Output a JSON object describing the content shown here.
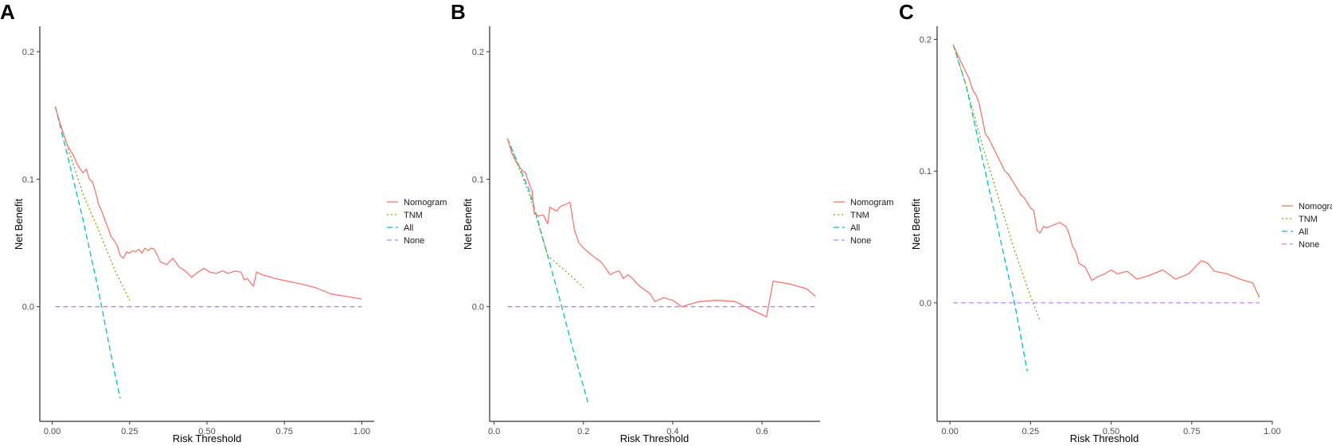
{
  "series_styles": {
    "Nomogram": {
      "color": "#F8766D",
      "dash": ""
    },
    "TNM": {
      "color": "#7CAE00",
      "dash": "2,3"
    },
    "All": {
      "color": "#00BFC4",
      "dash": "7,4"
    },
    "None": {
      "color": "#C77CFF",
      "dash": "6,4"
    }
  },
  "chart_data": [
    {
      "panel": "A",
      "type": "line",
      "xlabel": "Risk Threshold",
      "ylabel": "Net Benefit",
      "xlim": [
        -0.04,
        1.04
      ],
      "ylim": [
        -0.09,
        0.22
      ],
      "xticks": [
        0.0,
        0.25,
        0.5,
        0.75,
        1.0
      ],
      "xtick_labels": [
        "0.00",
        "0.25",
        "0.50",
        "0.75",
        "1.00"
      ],
      "yticks": [
        0.0,
        0.1,
        0.2
      ],
      "ytick_labels": [
        "0.0",
        "0.1",
        "0.2"
      ],
      "legend": [
        "Nomogram",
        "TNM",
        "All",
        "None"
      ],
      "series": [
        {
          "name": "Nomogram",
          "x": [
            0.01,
            0.03,
            0.05,
            0.06,
            0.07,
            0.08,
            0.09,
            0.1,
            0.11,
            0.12,
            0.13,
            0.14,
            0.15,
            0.16,
            0.17,
            0.18,
            0.19,
            0.2,
            0.21,
            0.22,
            0.23,
            0.24,
            0.25,
            0.26,
            0.27,
            0.28,
            0.29,
            0.3,
            0.31,
            0.32,
            0.33,
            0.35,
            0.37,
            0.39,
            0.41,
            0.43,
            0.45,
            0.47,
            0.49,
            0.51,
            0.53,
            0.55,
            0.57,
            0.59,
            0.61,
            0.62,
            0.63,
            0.64,
            0.65,
            0.66,
            0.68,
            0.72,
            0.76,
            0.8,
            0.85,
            0.9,
            0.95,
            1.0
          ],
          "y": [
            0.157,
            0.14,
            0.126,
            0.122,
            0.118,
            0.112,
            0.108,
            0.105,
            0.108,
            0.1,
            0.098,
            0.09,
            0.08,
            0.075,
            0.068,
            0.062,
            0.055,
            0.052,
            0.048,
            0.04,
            0.038,
            0.043,
            0.042,
            0.044,
            0.043,
            0.045,
            0.042,
            0.046,
            0.044,
            0.046,
            0.045,
            0.035,
            0.033,
            0.038,
            0.031,
            0.028,
            0.023,
            0.027,
            0.03,
            0.027,
            0.026,
            0.028,
            0.026,
            0.028,
            0.027,
            0.021,
            0.022,
            0.019,
            0.016,
            0.027,
            0.025,
            0.022,
            0.02,
            0.018,
            0.015,
            0.01,
            0.008,
            0.006
          ]
        },
        {
          "name": "TNM",
          "x": [
            0.01,
            0.05,
            0.1,
            0.15,
            0.2,
            0.25
          ],
          "y": [
            0.157,
            0.125,
            0.088,
            0.06,
            0.03,
            0.005
          ]
        },
        {
          "name": "All",
          "x": [
            0.01,
            0.05,
            0.1,
            0.15,
            0.2,
            0.22
          ],
          "y": [
            0.157,
            0.118,
            0.068,
            0.012,
            -0.05,
            -0.072
          ]
        },
        {
          "name": "None",
          "x": [
            0.01,
            1.0
          ],
          "y": [
            0.0,
            0.0
          ]
        }
      ]
    },
    {
      "panel": "B",
      "type": "line",
      "xlabel": "Risk Threshold",
      "ylabel": "Net Benefit",
      "xlim": [
        -0.01,
        0.73
      ],
      "ylim": [
        -0.09,
        0.22
      ],
      "xticks": [
        0.0,
        0.2,
        0.4,
        0.6
      ],
      "xtick_labels": [
        "0.0",
        "0.2",
        "0.4",
        "0.6"
      ],
      "yticks": [
        0.0,
        0.1,
        0.2
      ],
      "ytick_labels": [
        "0.0",
        "0.1",
        "0.2"
      ],
      "legend": [
        "Nomogram",
        "TNM",
        "All",
        "None"
      ],
      "series": [
        {
          "name": "Nomogram",
          "x": [
            0.03,
            0.04,
            0.05,
            0.06,
            0.07,
            0.075,
            0.08,
            0.085,
            0.09,
            0.1,
            0.11,
            0.12,
            0.125,
            0.13,
            0.14,
            0.15,
            0.16,
            0.17,
            0.18,
            0.19,
            0.2,
            0.22,
            0.24,
            0.26,
            0.27,
            0.28,
            0.29,
            0.3,
            0.31,
            0.32,
            0.33,
            0.35,
            0.36,
            0.38,
            0.4,
            0.42,
            0.44,
            0.46,
            0.5,
            0.54,
            0.58,
            0.61,
            0.625,
            0.64,
            0.66,
            0.7,
            0.72
          ],
          "y": [
            0.132,
            0.12,
            0.113,
            0.108,
            0.105,
            0.1,
            0.095,
            0.091,
            0.073,
            0.071,
            0.072,
            0.065,
            0.078,
            0.077,
            0.075,
            0.079,
            0.08,
            0.082,
            0.06,
            0.05,
            0.046,
            0.04,
            0.035,
            0.025,
            0.027,
            0.028,
            0.022,
            0.025,
            0.022,
            0.018,
            0.015,
            0.01,
            0.004,
            0.007,
            0.005,
            0.0,
            0.002,
            0.004,
            0.005,
            0.004,
            -0.003,
            -0.008,
            0.02,
            0.019,
            0.018,
            0.014,
            0.008
          ]
        },
        {
          "name": "TNM",
          "x": [
            0.03,
            0.08,
            0.12,
            0.16,
            0.2
          ],
          "y": [
            0.132,
            0.087,
            0.04,
            0.028,
            0.015
          ]
        },
        {
          "name": "All",
          "x": [
            0.03,
            0.08,
            0.12,
            0.15,
            0.18,
            0.21
          ],
          "y": [
            0.132,
            0.09,
            0.04,
            0.002,
            -0.038,
            -0.075
          ]
        },
        {
          "name": "None",
          "x": [
            0.03,
            0.72
          ],
          "y": [
            0.0,
            0.0
          ]
        }
      ]
    },
    {
      "panel": "C",
      "type": "line",
      "xlabel": "Risk Threshold",
      "ylabel": "Net Benefit",
      "xlim": [
        -0.04,
        1.0
      ],
      "ylim": [
        -0.09,
        0.21
      ],
      "xticks": [
        0.0,
        0.25,
        0.5,
        0.75,
        1.0
      ],
      "xtick_labels": [
        "0.00",
        "0.25",
        "0.50",
        "0.75",
        "1.00"
      ],
      "yticks": [
        0.0,
        0.1,
        0.2
      ],
      "ytick_labels": [
        "0.0",
        "0.1",
        "0.2"
      ],
      "legend": [
        "Nomogram",
        "TNM",
        "All",
        "None"
      ],
      "series": [
        {
          "name": "Nomogram",
          "x": [
            0.01,
            0.03,
            0.05,
            0.06,
            0.07,
            0.08,
            0.09,
            0.1,
            0.11,
            0.12,
            0.13,
            0.14,
            0.15,
            0.16,
            0.17,
            0.18,
            0.2,
            0.22,
            0.23,
            0.24,
            0.25,
            0.26,
            0.27,
            0.28,
            0.29,
            0.3,
            0.31,
            0.32,
            0.34,
            0.36,
            0.37,
            0.38,
            0.39,
            0.4,
            0.42,
            0.44,
            0.46,
            0.48,
            0.5,
            0.52,
            0.55,
            0.58,
            0.62,
            0.66,
            0.7,
            0.74,
            0.76,
            0.78,
            0.8,
            0.82,
            0.86,
            0.9,
            0.94,
            0.96
          ],
          "y": [
            0.196,
            0.185,
            0.175,
            0.17,
            0.162,
            0.158,
            0.152,
            0.14,
            0.128,
            0.125,
            0.12,
            0.115,
            0.11,
            0.105,
            0.1,
            0.098,
            0.09,
            0.082,
            0.08,
            0.076,
            0.072,
            0.07,
            0.055,
            0.053,
            0.058,
            0.057,
            0.058,
            0.059,
            0.061,
            0.058,
            0.052,
            0.043,
            0.039,
            0.03,
            0.027,
            0.017,
            0.02,
            0.022,
            0.025,
            0.022,
            0.024,
            0.018,
            0.021,
            0.025,
            0.018,
            0.022,
            0.027,
            0.032,
            0.03,
            0.024,
            0.022,
            0.018,
            0.015,
            0.004
          ]
        },
        {
          "name": "TNM",
          "x": [
            0.01,
            0.05,
            0.1,
            0.15,
            0.2,
            0.25,
            0.28
          ],
          "y": [
            0.196,
            0.165,
            0.12,
            0.08,
            0.04,
            0.005,
            -0.014
          ]
        },
        {
          "name": "All",
          "x": [
            0.01,
            0.05,
            0.1,
            0.15,
            0.2,
            0.24
          ],
          "y": [
            0.196,
            0.165,
            0.11,
            0.055,
            0.0,
            -0.052
          ]
        },
        {
          "name": "None",
          "x": [
            0.01,
            0.96
          ],
          "y": [
            0.0,
            0.0
          ]
        }
      ]
    }
  ]
}
